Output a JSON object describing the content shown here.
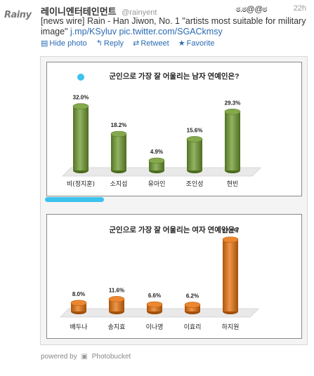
{
  "tweet": {
    "avatar_text": "Rainy",
    "name": "레이니엔터테인먼트",
    "handle": "@rainyent",
    "emote": "ಠ.ಠ@@ಠ",
    "time": "22h",
    "text": "[news wire] Rain - Han Jiwon, No. 1 \"artists most suitable for military image\"",
    "link1": "j.mp/KSyluv",
    "link2": "pic.twitter.com/SGACkmsy",
    "actions": {
      "hide_photo": "Hide photo",
      "reply": "Reply",
      "retweet": "Retweet",
      "favorite": "Favorite"
    }
  },
  "photo": {
    "footer_powered": "powered by",
    "footer_brand": "Photobucket"
  },
  "colors": {
    "link": "#2a6ab3",
    "green_bar": "#6e9a2e",
    "orange_bar": "#e8720c",
    "highlight": "#3cc3ee"
  },
  "chart_data": [
    {
      "type": "bar",
      "title": "군인으로 가장 잘 어울리는 남자 연예인은?",
      "categories": [
        "비(정지훈)",
        "소지섭",
        "유아인",
        "조인성",
        "현빈"
      ],
      "values": [
        32.0,
        18.2,
        4.9,
        15.6,
        29.3
      ],
      "value_labels": [
        "32.0%",
        "18.2%",
        "4.9%",
        "15.6%",
        "29.3%"
      ],
      "color": "#6e9a2e",
      "ylim": [
        0,
        35
      ]
    },
    {
      "type": "bar",
      "title": "군인으로 가장 잘 어울리는 여자 연예인은?",
      "categories": [
        "배두나",
        "송지효",
        "이나영",
        "이효리",
        "하지원"
      ],
      "values": [
        8.0,
        11.6,
        6.6,
        6.2,
        67.6
      ],
      "value_labels": [
        "8.0%",
        "11.6%",
        "6.6%",
        "6.2%",
        "67.6%"
      ],
      "color": "#e8720c",
      "ylim": [
        0,
        70
      ]
    }
  ]
}
